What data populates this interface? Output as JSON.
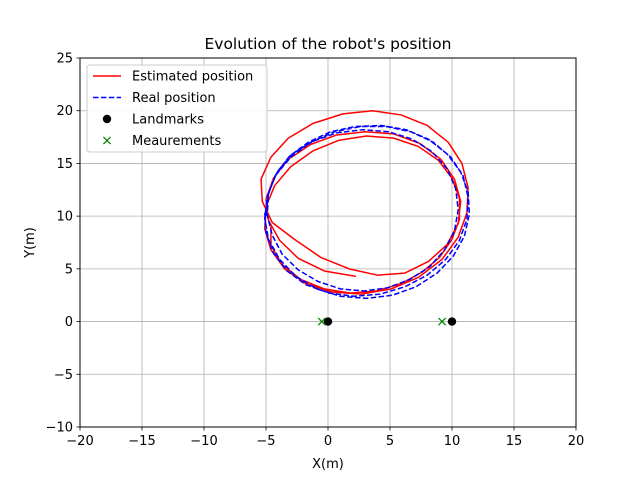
{
  "chart_data": {
    "type": "line",
    "title": "Evolution of the robot's position",
    "xlabel": "X(m)",
    "ylabel": "Y(m)",
    "xlim": [
      -20,
      20
    ],
    "ylim": [
      -10,
      25
    ],
    "xticks": [
      -20,
      -15,
      -10,
      -5,
      0,
      5,
      10,
      15,
      20
    ],
    "yticks": [
      -10,
      -5,
      0,
      5,
      10,
      15,
      20,
      25
    ],
    "grid": true,
    "legend_position": "top-left",
    "series": [
      {
        "name": "Estimated position",
        "kind": "line",
        "style": "solid",
        "color": "#ff0000",
        "points": [
          [
            2.2,
            4.3
          ],
          [
            -0.3,
            4.8
          ],
          [
            -2.4,
            6.0
          ],
          [
            -3.9,
            7.7
          ],
          [
            -4.8,
            9.6
          ],
          [
            -5.0,
            11.6
          ],
          [
            -4.4,
            13.6
          ],
          [
            -3.2,
            15.4
          ],
          [
            -1.4,
            16.8
          ],
          [
            0.7,
            17.7
          ],
          [
            3.0,
            18.0
          ],
          [
            5.3,
            17.8
          ],
          [
            7.4,
            16.9
          ],
          [
            9.1,
            15.4
          ],
          [
            10.2,
            13.5
          ],
          [
            10.7,
            11.4
          ],
          [
            10.5,
            9.3
          ],
          [
            9.6,
            7.3
          ],
          [
            8.1,
            5.7
          ],
          [
            6.2,
            4.6
          ],
          [
            4.0,
            4.4
          ],
          [
            1.7,
            5.0
          ],
          [
            -0.6,
            6.1
          ],
          [
            -2.7,
            7.8
          ],
          [
            -4.5,
            9.4
          ],
          [
            -5.3,
            11.4
          ],
          [
            -5.4,
            13.5
          ],
          [
            -4.6,
            15.6
          ],
          [
            -3.2,
            17.4
          ],
          [
            -1.2,
            18.8
          ],
          [
            1.2,
            19.7
          ],
          [
            3.6,
            20.0
          ],
          [
            5.9,
            19.6
          ],
          [
            8.0,
            18.6
          ],
          [
            9.7,
            17.0
          ],
          [
            10.8,
            15.0
          ],
          [
            11.3,
            12.7
          ],
          [
            11.2,
            10.3
          ],
          [
            10.5,
            8.0
          ],
          [
            9.2,
            5.9
          ],
          [
            7.3,
            4.2
          ],
          [
            5.1,
            3.1
          ],
          [
            2.7,
            2.6
          ],
          [
            0.3,
            2.8
          ],
          [
            -1.8,
            3.6
          ],
          [
            -3.5,
            5.0
          ],
          [
            -4.6,
            6.8
          ],
          [
            -5.1,
            8.8
          ],
          [
            -5.0,
            10.9
          ],
          [
            -4.3,
            12.9
          ],
          [
            -3.0,
            14.7
          ],
          [
            -1.2,
            16.2
          ],
          [
            0.9,
            17.2
          ],
          [
            3.1,
            17.6
          ],
          [
            5.3,
            17.4
          ],
          [
            7.3,
            16.6
          ],
          [
            8.9,
            15.3
          ],
          [
            10.0,
            13.6
          ],
          [
            10.6,
            11.7
          ],
          [
            10.6,
            9.7
          ],
          [
            10.0,
            7.8
          ],
          [
            9.0,
            6.1
          ],
          [
            7.6,
            4.7
          ],
          [
            5.9,
            3.6
          ],
          [
            3.9,
            2.9
          ],
          [
            1.8,
            2.7
          ],
          [
            -0.3,
            3.1
          ],
          [
            -2.2,
            4.0
          ],
          [
            -3.7,
            5.4
          ],
          [
            -4.6,
            7.2
          ],
          [
            -4.6,
            9.0
          ]
        ]
      },
      {
        "name": "Real position",
        "kind": "line",
        "style": "dashed",
        "color": "#0000ff",
        "points": [
          [
            -5.0,
            10.0
          ],
          [
            -4.8,
            12.2
          ],
          [
            -4.1,
            14.2
          ],
          [
            -2.9,
            15.9
          ],
          [
            -1.2,
            17.1
          ],
          [
            0.7,
            17.9
          ],
          [
            2.8,
            18.2
          ],
          [
            4.9,
            18.0
          ],
          [
            6.8,
            17.3
          ],
          [
            8.4,
            16.1
          ],
          [
            9.6,
            14.5
          ],
          [
            10.3,
            12.6
          ],
          [
            10.5,
            10.6
          ],
          [
            10.2,
            8.6
          ],
          [
            9.4,
            6.8
          ],
          [
            8.2,
            5.2
          ],
          [
            6.6,
            4.0
          ],
          [
            4.8,
            3.2
          ],
          [
            2.9,
            2.9
          ],
          [
            1.0,
            3.1
          ],
          [
            -0.8,
            3.8
          ],
          [
            -2.4,
            4.9
          ],
          [
            -3.7,
            6.4
          ],
          [
            -4.5,
            8.2
          ],
          [
            -4.9,
            10.1
          ],
          [
            -4.8,
            12.1
          ],
          [
            -4.2,
            14.0
          ],
          [
            -3.1,
            15.7
          ],
          [
            -1.6,
            17.0
          ],
          [
            0.2,
            18.0
          ],
          [
            2.2,
            18.5
          ],
          [
            4.3,
            18.6
          ],
          [
            6.3,
            18.2
          ],
          [
            8.1,
            17.3
          ],
          [
            9.6,
            15.9
          ],
          [
            10.7,
            14.2
          ],
          [
            11.3,
            12.3
          ],
          [
            11.4,
            10.2
          ],
          [
            11.0,
            8.1
          ],
          [
            10.1,
            6.2
          ],
          [
            8.8,
            4.6
          ],
          [
            7.1,
            3.3
          ],
          [
            5.2,
            2.5
          ],
          [
            3.1,
            2.2
          ],
          [
            1.0,
            2.4
          ],
          [
            -0.9,
            3.1
          ],
          [
            -2.6,
            4.3
          ],
          [
            -3.9,
            5.9
          ],
          [
            -4.8,
            7.8
          ],
          [
            -5.1,
            9.8
          ],
          [
            -4.9,
            11.9
          ],
          [
            -4.2,
            13.9
          ],
          [
            -3.0,
            15.6
          ],
          [
            -1.4,
            17.0
          ],
          [
            0.5,
            18.0
          ],
          [
            2.6,
            18.5
          ],
          [
            4.7,
            18.5
          ],
          [
            6.7,
            18.0
          ],
          [
            8.5,
            17.0
          ],
          [
            9.9,
            15.6
          ],
          [
            10.9,
            13.8
          ],
          [
            11.3,
            11.8
          ],
          [
            11.2,
            9.7
          ],
          [
            10.6,
            7.7
          ],
          [
            9.5,
            5.9
          ],
          [
            8.0,
            4.4
          ],
          [
            6.2,
            3.3
          ],
          [
            4.2,
            2.6
          ],
          [
            2.1,
            2.4
          ],
          [
            0.1,
            2.7
          ],
          [
            -1.8,
            3.5
          ],
          [
            -3.3,
            4.8
          ],
          [
            -4.4,
            6.5
          ],
          [
            -5.0,
            8.4
          ],
          [
            -5.1,
            10.4
          ]
        ]
      },
      {
        "name": "Landmarks",
        "kind": "marker",
        "marker": "circle",
        "color": "#000000",
        "points": [
          [
            0,
            0
          ],
          [
            10,
            0
          ]
        ]
      },
      {
        "name": "Meaurements",
        "kind": "marker",
        "marker": "x",
        "color": "#008000",
        "points": [
          [
            -0.5,
            0
          ],
          [
            9.2,
            0
          ]
        ]
      }
    ]
  }
}
